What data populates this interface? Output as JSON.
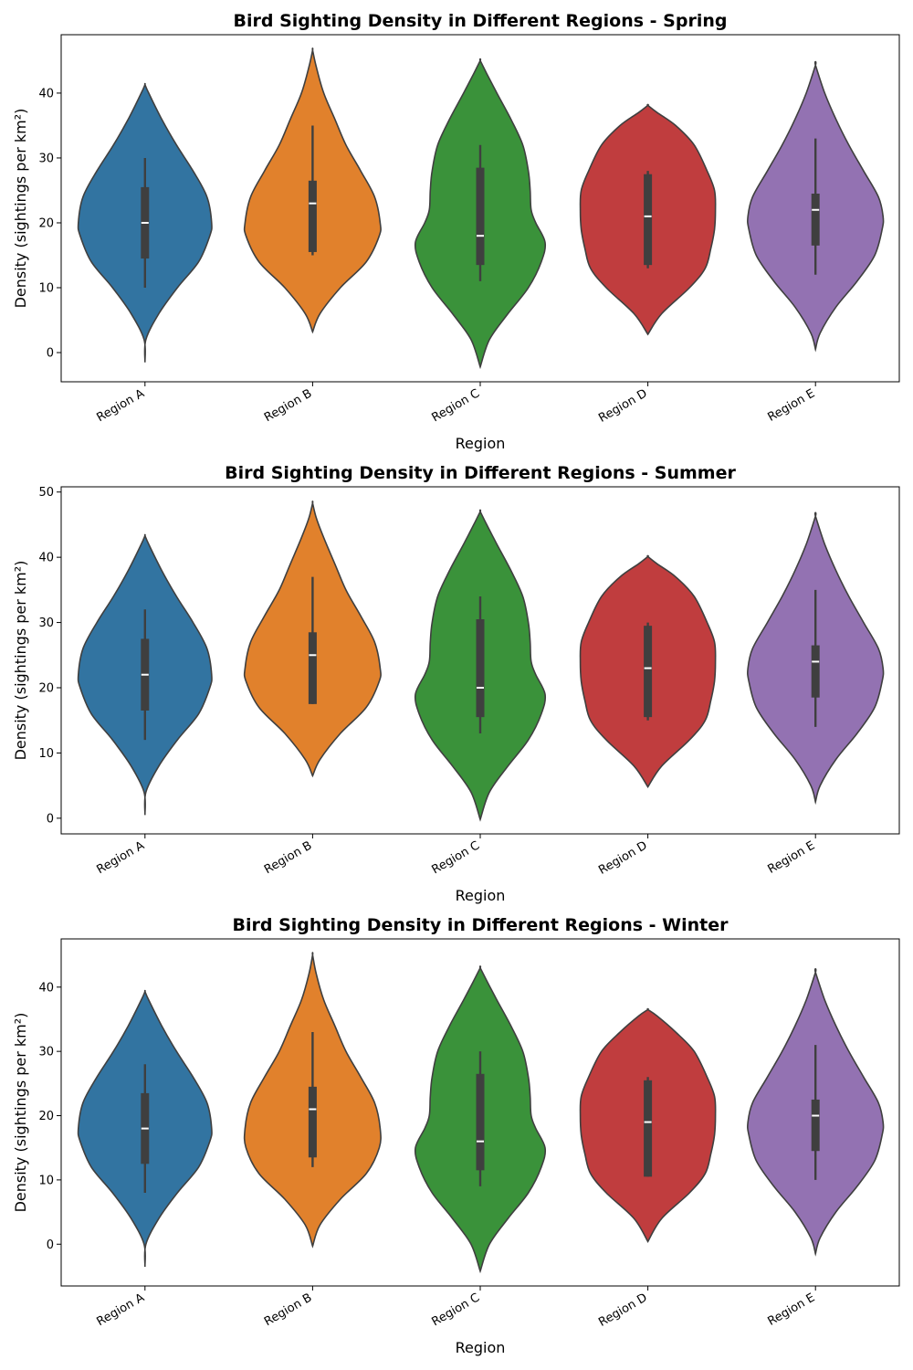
{
  "colors": {
    "Region A": "#3274a1",
    "Region B": "#e1812c",
    "Region C": "#3a923a",
    "Region D": "#c03d3e",
    "Region E": "#9372b2",
    "outline": "#3f3f3f",
    "box": "#3f3f3f",
    "median": "#ffffff"
  },
  "chart_data": [
    {
      "type": "violin",
      "title": "Bird Sighting Density in Different Regions - Spring",
      "xlabel": "Region",
      "ylabel": "Density (sightings per km²)",
      "categories": [
        "Region A",
        "Region B",
        "Region C",
        "Region D",
        "Region E"
      ],
      "ylim": [
        -4.5,
        49
      ],
      "yticks": [
        0,
        10,
        20,
        30,
        40
      ],
      "grid": false,
      "violins": [
        {
          "region": "Region A",
          "min": -1.5,
          "max": 41.3,
          "whisker_low": 10,
          "whisker_high": 30,
          "q1": 14.5,
          "median": 20,
          "q3": 25.5,
          "profile": [
            [
              -1.5,
              0
            ],
            [
              2,
              1
            ],
            [
              6,
              15
            ],
            [
              10,
              35
            ],
            [
              14,
              58
            ],
            [
              18,
              70
            ],
            [
              20,
              72
            ],
            [
              24,
              67
            ],
            [
              28,
              52
            ],
            [
              32,
              34
            ],
            [
              36,
              18
            ],
            [
              40,
              4
            ],
            [
              41.3,
              0
            ]
          ]
        },
        {
          "region": "Region B",
          "min": 3.2,
          "max": 46.6,
          "whisker_low": 15,
          "whisker_high": 35,
          "q1": 15.5,
          "median": 23,
          "q3": 26.5,
          "profile": [
            [
              3.2,
              0
            ],
            [
              6,
              8
            ],
            [
              10,
              30
            ],
            [
              14,
              58
            ],
            [
              18,
              72
            ],
            [
              20,
              73
            ],
            [
              24,
              67
            ],
            [
              28,
              52
            ],
            [
              32,
              36
            ],
            [
              36,
              24
            ],
            [
              40,
              12
            ],
            [
              44,
              4
            ],
            [
              46.6,
              0
            ]
          ]
        },
        {
          "region": "Region C",
          "min": -2.2,
          "max": 45,
          "whisker_low": 11,
          "whisker_high": 32,
          "q1": 13.5,
          "median": 18,
          "q3": 28.5,
          "profile": [
            [
              -2.2,
              0
            ],
            [
              2,
              10
            ],
            [
              6,
              30
            ],
            [
              10,
              52
            ],
            [
              14,
              66
            ],
            [
              17,
              70
            ],
            [
              20,
              60
            ],
            [
              22,
              55
            ],
            [
              25,
              54
            ],
            [
              28,
              52
            ],
            [
              32,
              46
            ],
            [
              36,
              33
            ],
            [
              40,
              18
            ],
            [
              43,
              7
            ],
            [
              45,
              0
            ]
          ]
        },
        {
          "region": "Region D",
          "min": 2.8,
          "max": 38.1,
          "whisker_low": 13,
          "whisker_high": 28,
          "q1": 13.5,
          "median": 21,
          "q3": 27.5,
          "profile": [
            [
              2.8,
              0
            ],
            [
              6,
              15
            ],
            [
              10,
              45
            ],
            [
              13,
              62
            ],
            [
              16,
              68
            ],
            [
              19,
              72
            ],
            [
              22,
              73
            ],
            [
              25,
              72
            ],
            [
              28,
              64
            ],
            [
              32,
              50
            ],
            [
              35,
              30
            ],
            [
              37,
              10
            ],
            [
              38.1,
              0
            ]
          ]
        },
        {
          "region": "Region E",
          "min": 0.5,
          "max": 44.3,
          "whisker_low": 12,
          "whisker_high": 33,
          "q1": 16.5,
          "median": 22,
          "q3": 24.5,
          "profile": [
            [
              0.5,
              0
            ],
            [
              3,
              5
            ],
            [
              7,
              22
            ],
            [
              11,
              45
            ],
            [
              15,
              64
            ],
            [
              19,
              72
            ],
            [
              21,
              73
            ],
            [
              24,
              68
            ],
            [
              28,
              52
            ],
            [
              32,
              36
            ],
            [
              36,
              22
            ],
            [
              40,
              10
            ],
            [
              44.3,
              0
            ]
          ]
        }
      ]
    },
    {
      "type": "violin",
      "title": "Bird Sighting Density in Different Regions - Summer",
      "xlabel": "Region",
      "ylabel": "Density (sightings per km²)",
      "categories": [
        "Region A",
        "Region B",
        "Region C",
        "Region D",
        "Region E"
      ],
      "ylim": [
        -2.4,
        50.8
      ],
      "yticks": [
        0,
        10,
        20,
        30,
        40,
        50
      ],
      "grid": false,
      "violins": [
        {
          "region": "Region A",
          "min": 0.5,
          "max": 43.3,
          "whisker_low": 12,
          "whisker_high": 32,
          "q1": 16.5,
          "median": 22,
          "q3": 27.5,
          "profile": [
            [
              0.5,
              0
            ],
            [
              4,
              1
            ],
            [
              8,
              15
            ],
            [
              12,
              35
            ],
            [
              16,
              58
            ],
            [
              20,
              70
            ],
            [
              22,
              72
            ],
            [
              26,
              67
            ],
            [
              30,
              52
            ],
            [
              34,
              34
            ],
            [
              38,
              18
            ],
            [
              42,
              4
            ],
            [
              43.3,
              0
            ]
          ]
        },
        {
          "region": "Region B",
          "min": 6.5,
          "max": 48.3,
          "whisker_low": 17.5,
          "whisker_high": 37,
          "q1": 17.5,
          "median": 25,
          "q3": 28.5,
          "profile": [
            [
              6.5,
              0
            ],
            [
              9,
              8
            ],
            [
              13,
              30
            ],
            [
              17,
              58
            ],
            [
              21,
              72
            ],
            [
              23,
              73
            ],
            [
              27,
              67
            ],
            [
              31,
              52
            ],
            [
              35,
              36
            ],
            [
              39,
              24
            ],
            [
              43,
              12
            ],
            [
              46,
              4
            ],
            [
              48.3,
              0
            ]
          ]
        },
        {
          "region": "Region C",
          "min": -0.2,
          "max": 47,
          "whisker_low": 13,
          "whisker_high": 34,
          "q1": 15.5,
          "median": 20,
          "q3": 30.5,
          "profile": [
            [
              -0.2,
              0
            ],
            [
              4,
              10
            ],
            [
              8,
              30
            ],
            [
              12,
              52
            ],
            [
              16,
              66
            ],
            [
              19,
              70
            ],
            [
              22,
              60
            ],
            [
              24,
              55
            ],
            [
              27,
              54
            ],
            [
              30,
              52
            ],
            [
              34,
              46
            ],
            [
              38,
              33
            ],
            [
              42,
              18
            ],
            [
              45,
              7
            ],
            [
              47,
              0
            ]
          ]
        },
        {
          "region": "Region D",
          "min": 4.8,
          "max": 40.1,
          "whisker_low": 15,
          "whisker_high": 30,
          "q1": 15.5,
          "median": 23,
          "q3": 29.5,
          "profile": [
            [
              4.8,
              0
            ],
            [
              8,
              15
            ],
            [
              12,
              45
            ],
            [
              15,
              62
            ],
            [
              18,
              68
            ],
            [
              21,
              72
            ],
            [
              24,
              73
            ],
            [
              27,
              72
            ],
            [
              30,
              64
            ],
            [
              34,
              50
            ],
            [
              37,
              30
            ],
            [
              39,
              10
            ],
            [
              40.1,
              0
            ]
          ]
        },
        {
          "region": "Region E",
          "min": 2.5,
          "max": 46.3,
          "whisker_low": 14,
          "whisker_high": 35,
          "q1": 18.5,
          "median": 24,
          "q3": 26.5,
          "profile": [
            [
              2.5,
              0
            ],
            [
              5,
              5
            ],
            [
              9,
              22
            ],
            [
              13,
              45
            ],
            [
              17,
              64
            ],
            [
              21,
              72
            ],
            [
              23,
              73
            ],
            [
              26,
              68
            ],
            [
              30,
              52
            ],
            [
              34,
              36
            ],
            [
              38,
              22
            ],
            [
              42,
              10
            ],
            [
              46.3,
              0
            ]
          ]
        }
      ]
    },
    {
      "type": "violin",
      "title": "Bird Sighting Density in Different Regions - Winter",
      "xlabel": "Region",
      "ylabel": "Density (sightings per km²)",
      "categories": [
        "Region A",
        "Region B",
        "Region C",
        "Region D",
        "Region E"
      ],
      "ylim": [
        -6.5,
        47.5
      ],
      "yticks": [
        0,
        10,
        20,
        30,
        40
      ],
      "grid": false,
      "violins": [
        {
          "region": "Region A",
          "min": -3.5,
          "max": 39.3,
          "whisker_low": 8,
          "whisker_high": 28,
          "q1": 12.5,
          "median": 18,
          "q3": 23.5,
          "profile": [
            [
              -3.5,
              0
            ],
            [
              0,
              1
            ],
            [
              4,
              15
            ],
            [
              8,
              35
            ],
            [
              12,
              58
            ],
            [
              16,
              70
            ],
            [
              18,
              72
            ],
            [
              22,
              67
            ],
            [
              26,
              52
            ],
            [
              30,
              34
            ],
            [
              34,
              18
            ],
            [
              38,
              4
            ],
            [
              39.3,
              0
            ]
          ]
        },
        {
          "region": "Region B",
          "min": -0.3,
          "max": 45,
          "whisker_low": 12,
          "whisker_high": 33,
          "q1": 13.5,
          "median": 21,
          "q3": 24.5,
          "profile": [
            [
              -0.3,
              0
            ],
            [
              3,
              8
            ],
            [
              7,
              30
            ],
            [
              11,
              58
            ],
            [
              15,
              72
            ],
            [
              18,
              73
            ],
            [
              22,
              67
            ],
            [
              26,
              52
            ],
            [
              30,
              36
            ],
            [
              34,
              24
            ],
            [
              38,
              12
            ],
            [
              42,
              4
            ],
            [
              45,
              0
            ]
          ]
        },
        {
          "region": "Region C",
          "min": -4.2,
          "max": 43,
          "whisker_low": 9,
          "whisker_high": 30,
          "q1": 11.5,
          "median": 16,
          "q3": 26.5,
          "profile": [
            [
              -4.2,
              0
            ],
            [
              0,
              10
            ],
            [
              4,
              30
            ],
            [
              8,
              52
            ],
            [
              12,
              66
            ],
            [
              15,
              70
            ],
            [
              18,
              60
            ],
            [
              20,
              55
            ],
            [
              23,
              54
            ],
            [
              26,
              52
            ],
            [
              30,
              46
            ],
            [
              34,
              33
            ],
            [
              38,
              18
            ],
            [
              41,
              7
            ],
            [
              43,
              0
            ]
          ]
        },
        {
          "region": "Region D",
          "min": 0.4,
          "max": 36.5,
          "whisker_low": 10.5,
          "whisker_high": 26,
          "q1": 10.5,
          "median": 19,
          "q3": 25.5,
          "profile": [
            [
              0.4,
              0
            ],
            [
              4,
              15
            ],
            [
              8,
              45
            ],
            [
              11,
              62
            ],
            [
              14,
              68
            ],
            [
              17,
              72
            ],
            [
              20,
              73
            ],
            [
              23,
              72
            ],
            [
              26,
              64
            ],
            [
              30,
              50
            ],
            [
              33,
              30
            ],
            [
              35.5,
              10
            ],
            [
              36.5,
              0
            ]
          ]
        },
        {
          "region": "Region E",
          "min": -1.5,
          "max": 42.3,
          "whisker_low": 10,
          "whisker_high": 31,
          "q1": 14.5,
          "median": 20,
          "q3": 22.5,
          "profile": [
            [
              -1.5,
              0
            ],
            [
              1,
              5
            ],
            [
              5,
              22
            ],
            [
              9,
              45
            ],
            [
              13,
              64
            ],
            [
              17,
              72
            ],
            [
              19,
              73
            ],
            [
              22,
              68
            ],
            [
              26,
              52
            ],
            [
              30,
              36
            ],
            [
              34,
              22
            ],
            [
              38,
              10
            ],
            [
              42.3,
              0
            ]
          ]
        }
      ]
    }
  ]
}
